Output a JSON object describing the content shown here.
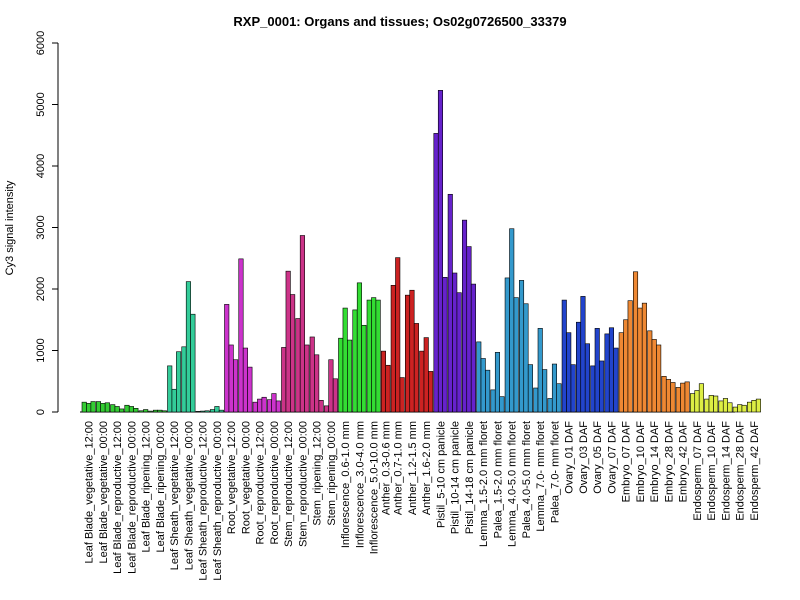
{
  "chart_data": {
    "type": "bar",
    "title": "RXP_0001: Organs and tissues; Os02g0726500_33379",
    "xlabel": "",
    "ylabel": "Cy3 signal intensity",
    "ylim": [
      0,
      6000
    ],
    "yticks": [
      0,
      1000,
      2000,
      3000,
      4000,
      5000,
      6000
    ],
    "grid": false,
    "groups": [
      {
        "label": "Leaf Blade_vegetative_12:00",
        "color": "#33cc33",
        "values": [
          160,
          140,
          170
        ]
      },
      {
        "label": "Leaf Blade_vegetative_00:00",
        "color": "#33cc33",
        "values": [
          170,
          140,
          150
        ]
      },
      {
        "label": "Leaf Blade_reproductive_12:00",
        "color": "#33cc33",
        "values": [
          120,
          90,
          50
        ]
      },
      {
        "label": "Leaf Blade_reproductive_00:00",
        "color": "#33cc33",
        "values": [
          110,
          90,
          60
        ]
      },
      {
        "label": "Leaf Blade_ripening_12:00",
        "color": "#33cc33",
        "values": [
          20,
          40,
          15
        ]
      },
      {
        "label": "Leaf Blade_ripening_00:00",
        "color": "#33cc33",
        "values": [
          30,
          30,
          20
        ]
      },
      {
        "label": "Leaf Sheath_vegetative_12:00",
        "color": "#33cc99",
        "values": [
          750,
          370,
          980
        ]
      },
      {
        "label": "Leaf Sheath_vegetative_00:00",
        "color": "#33cc99",
        "values": [
          1060,
          2120,
          1590
        ]
      },
      {
        "label": "Leaf Sheath_reproductive_12:00",
        "color": "#33cc99",
        "values": [
          10,
          15,
          20
        ]
      },
      {
        "label": "Leaf Sheath_reproductive_00:00",
        "color": "#33cc99",
        "values": [
          40,
          90,
          30
        ]
      },
      {
        "label": "Root_vegetative_12:00",
        "color": "#cc33cc",
        "values": [
          1750,
          1090,
          850
        ]
      },
      {
        "label": "Root_vegetative_00:00",
        "color": "#cc33cc",
        "values": [
          2490,
          1040,
          730
        ]
      },
      {
        "label": "Root_reproductive_12:00",
        "color": "#cc33cc",
        "values": [
          160,
          210,
          240
        ]
      },
      {
        "label": "Root_reproductive_00:00",
        "color": "#cc33cc",
        "values": [
          200,
          300,
          180
        ]
      },
      {
        "label": "Stem_reproductive_12:00",
        "color": "#cc3388",
        "values": [
          1050,
          2290,
          1910
        ]
      },
      {
        "label": "Stem_reproductive_00:00",
        "color": "#cc3388",
        "values": [
          1520,
          2870,
          1090
        ]
      },
      {
        "label": "Stem_ripening_12:00",
        "color": "#cc3388",
        "values": [
          1220,
          930,
          190
        ]
      },
      {
        "label": "Stem_ripening_00:00",
        "color": "#cc3388",
        "values": [
          100,
          850,
          540
        ]
      },
      {
        "label": "Inflorescence_0.6-1.0 mm",
        "color": "#33dd33",
        "values": [
          1200,
          1690,
          1170
        ]
      },
      {
        "label": "Inflorescence_3.0-4.0 mm",
        "color": "#33dd33",
        "values": [
          1660,
          2100,
          1410
        ]
      },
      {
        "label": "Inflorescence_5.0-10.0 mm",
        "color": "#33dd33",
        "values": [
          1820,
          1860,
          1820
        ]
      },
      {
        "label": "Anther_0.3-0.6 mm",
        "color": "#cc2222",
        "values": [
          990,
          760
        ]
      },
      {
        "label": "Anther_0.7-1.0 mm",
        "color": "#cc2222",
        "values": [
          2060,
          2510,
          560
        ]
      },
      {
        "label": "Anther_1.2-1.5 mm",
        "color": "#cc2222",
        "values": [
          1900,
          1980,
          1440
        ]
      },
      {
        "label": "Anther_1.6-2.0 mm",
        "color": "#cc2222",
        "values": [
          990,
          1210,
          660
        ]
      },
      {
        "label": "Pistil_5-10 cm panicle",
        "color": "#6622cc",
        "values": [
          4530,
          5230,
          2190
        ]
      },
      {
        "label": "Pistil_10-14 cm panicle",
        "color": "#6622cc",
        "values": [
          3540,
          2260,
          1940
        ]
      },
      {
        "label": "Pistil_14-18 cm panicle",
        "color": "#6622cc",
        "values": [
          3120,
          2690,
          2080
        ]
      },
      {
        "label": "Lemma_1.5-2.0 mm floret",
        "color": "#3399cc",
        "values": [
          1140,
          870,
          680
        ]
      },
      {
        "label": "Palea_1.5-2.0 mm floret",
        "color": "#3399cc",
        "values": [
          360,
          970,
          250
        ]
      },
      {
        "label": "Lemma_4.0-5.0 mm floret",
        "color": "#3399cc",
        "values": [
          2180,
          2980,
          1860
        ]
      },
      {
        "label": "Palea_4.0-5.0 mm floret",
        "color": "#3399cc",
        "values": [
          2140,
          1760,
          770
        ]
      },
      {
        "label": "Lemma_7.0- mm floret",
        "color": "#3399cc",
        "values": [
          390,
          1360,
          690
        ]
      },
      {
        "label": "Palea_7.0- mm floret",
        "color": "#3399cc",
        "values": [
          220,
          780,
          460
        ]
      },
      {
        "label": "Ovary_01 DAF",
        "color": "#2244cc",
        "values": [
          1820,
          1290,
          770
        ]
      },
      {
        "label": "Ovary_03 DAF",
        "color": "#2244cc",
        "values": [
          1460,
          1880,
          1110
        ]
      },
      {
        "label": "Ovary_05 DAF",
        "color": "#2244cc",
        "values": [
          750,
          1360,
          830
        ]
      },
      {
        "label": "Ovary_07 DAF",
        "color": "#2244cc",
        "values": [
          1270,
          1370,
          1040
        ]
      },
      {
        "label": "Embryo_07 DAF",
        "color": "#ee8833",
        "values": [
          1290,
          1500,
          1810
        ]
      },
      {
        "label": "Embryo_10 DAF",
        "color": "#ee8833",
        "values": [
          2280,
          1690,
          1770
        ]
      },
      {
        "label": "Embryo_14 DAF",
        "color": "#ee8833",
        "values": [
          1320,
          1180,
          1090
        ]
      },
      {
        "label": "Embryo_28 DAF",
        "color": "#ee8833",
        "values": [
          580,
          530,
          480
        ]
      },
      {
        "label": "Embryo_42 DAF",
        "color": "#ee8833",
        "values": [
          400,
          470,
          490
        ]
      },
      {
        "label": "Endosperm_07 DAF",
        "color": "#ddee44",
        "values": [
          300,
          350,
          460
        ]
      },
      {
        "label": "Endosperm_10 DAF",
        "color": "#ddee44",
        "values": [
          210,
          270,
          260
        ]
      },
      {
        "label": "Endosperm_14 DAF",
        "color": "#ddee44",
        "values": [
          180,
          220,
          150
        ]
      },
      {
        "label": "Endosperm_28 DAF",
        "color": "#ddee44",
        "values": [
          80,
          120,
          110
        ]
      },
      {
        "label": "Endosperm_42 DAF",
        "color": "#ddee44",
        "values": [
          160,
          190,
          210
        ]
      }
    ]
  }
}
